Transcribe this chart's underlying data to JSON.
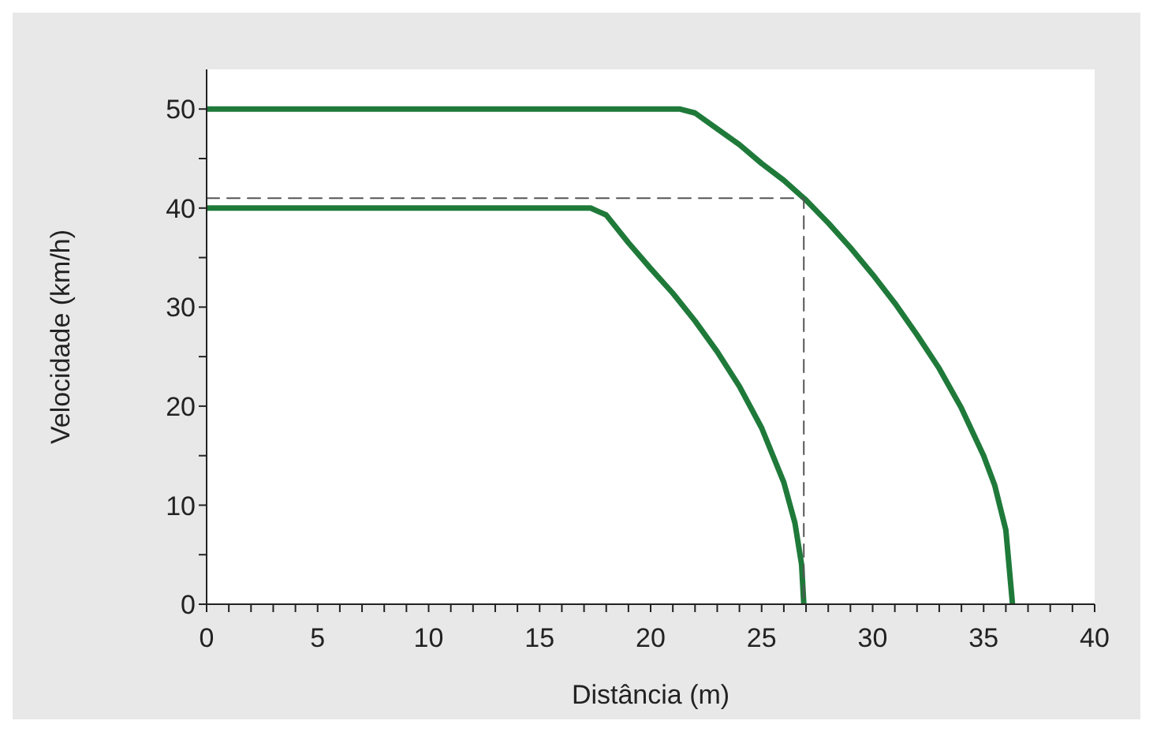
{
  "chart_data": {
    "type": "line",
    "xlabel": "Distância (m)",
    "ylabel": "Velocidade (km/h)",
    "xlim": [
      0,
      40
    ],
    "ylim": [
      0,
      54
    ],
    "xticks": [
      0,
      {
        "value": 1,
        "label": null
      },
      {
        "value": 2,
        "label": null
      },
      {
        "value": 3,
        "label": null
      },
      {
        "value": 4,
        "label": null
      },
      5,
      {
        "value": 6,
        "label": null
      },
      {
        "value": 7,
        "label": null
      },
      {
        "value": 8,
        "label": null
      },
      {
        "value": 9,
        "label": null
      },
      10,
      {
        "value": 11,
        "label": null
      },
      {
        "value": 12,
        "label": null
      },
      {
        "value": 13,
        "label": null
      },
      {
        "value": 14,
        "label": null
      },
      15,
      {
        "value": 16,
        "label": null
      },
      {
        "value": 17,
        "label": null
      },
      {
        "value": 18,
        "label": null
      },
      {
        "value": 19,
        "label": null
      },
      20,
      {
        "value": 21,
        "label": null
      },
      {
        "value": 22,
        "label": null
      },
      {
        "value": 23,
        "label": null
      },
      {
        "value": 24,
        "label": null
      },
      25,
      {
        "value": 26,
        "label": null
      },
      {
        "value": 27,
        "label": null
      },
      {
        "value": 28,
        "label": null
      },
      {
        "value": 29,
        "label": null
      },
      30,
      {
        "value": 31,
        "label": null
      },
      {
        "value": 32,
        "label": null
      },
      {
        "value": 33,
        "label": null
      },
      {
        "value": 34,
        "label": null
      },
      35,
      {
        "value": 36,
        "label": null
      },
      {
        "value": 37,
        "label": null
      },
      {
        "value": 38,
        "label": null
      },
      {
        "value": 39,
        "label": null
      },
      40
    ],
    "yticks": [
      0,
      {
        "value": 5,
        "label": null
      },
      10,
      {
        "value": 15,
        "label": null
      },
      20,
      {
        "value": 25,
        "label": null
      },
      30,
      {
        "value": 35,
        "label": null
      },
      40,
      {
        "value": 45,
        "label": null
      },
      50
    ],
    "marker": "none",
    "line_style": "solid",
    "series": [
      {
        "color": "#1f7a3a",
        "x": [
          0,
          21.3,
          22,
          23,
          24,
          25,
          26,
          27,
          28,
          29,
          30,
          31,
          32,
          33,
          34,
          35,
          35.5,
          36,
          36.3
        ],
        "values": [
          50,
          50,
          49.6,
          48,
          46.4,
          44.5,
          42.8,
          40.8,
          38.5,
          36,
          33.3,
          30.4,
          27.2,
          23.8,
          19.8,
          15,
          12,
          7.5,
          0
        ]
      },
      {
        "color": "#1f7a3a",
        "x": [
          0,
          17.3,
          18,
          19,
          20,
          21,
          22,
          23,
          24,
          25,
          26,
          26.5,
          26.8,
          26.9
        ],
        "values": [
          40,
          40,
          39.3,
          36.5,
          33.9,
          31.4,
          28.6,
          25.5,
          22,
          17.8,
          12.3,
          8.2,
          4,
          0
        ]
      },
      {
        "color": "#555555",
        "line_style": "dashed",
        "x": [
          0,
          26.9,
          26.9
        ],
        "values": [
          41,
          41,
          0
        ]
      }
    ]
  }
}
